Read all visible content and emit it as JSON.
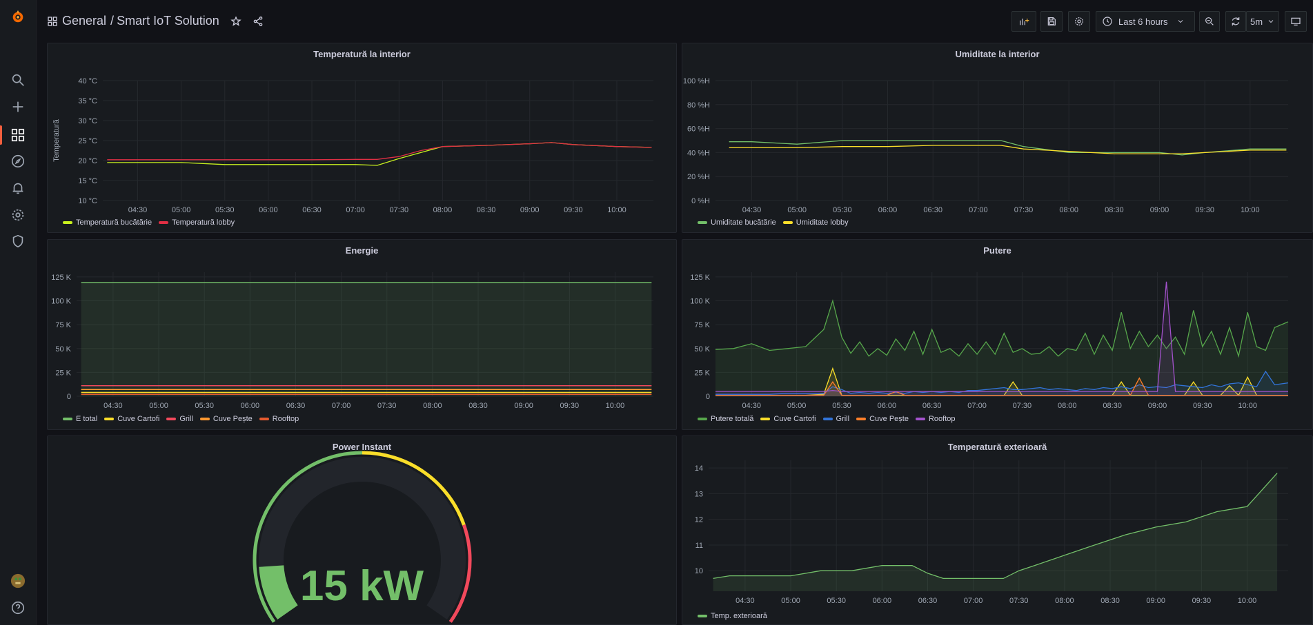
{
  "breadcrumb": {
    "folder": "General",
    "separator": "/",
    "dashboard": "Smart IoT Solution"
  },
  "toolbar": {
    "time_range": "Last 6 hours",
    "refresh_interval": "5m"
  },
  "panels": {
    "temp_interior": {
      "title": "Temperatură la interior",
      "chart_data": {
        "type": "line",
        "title": "Temperatură la interior",
        "ylabel": "Temperatură",
        "ylim": [
          10,
          40
        ],
        "yticks": [
          "40 °C",
          "35 °C",
          "30 °C",
          "25 °C",
          "20 °C",
          "15 °C",
          "10 °C"
        ],
        "xticks": [
          "04:30",
          "05:00",
          "05:30",
          "06:00",
          "06:30",
          "07:00",
          "07:30",
          "08:00",
          "08:30",
          "09:00",
          "09:30",
          "10:00"
        ],
        "x": [
          4.15,
          4.5,
          4.75,
          5.0,
          5.5,
          6.0,
          6.5,
          7.0,
          7.25,
          7.5,
          7.75,
          8.0,
          8.5,
          9.0,
          9.25,
          9.5,
          10.0,
          10.4
        ],
        "series": [
          {
            "name": "Temperatură bucătărie",
            "color": "#c8f01e",
            "values": [
              19.5,
              19.5,
              19.5,
              19.5,
              19,
              19,
              19,
              19,
              18.8,
              20.5,
              22,
              23.5,
              23.8,
              24.2,
              24.5,
              24,
              23.5,
              23.3
            ]
          },
          {
            "name": "Temperatură lobby",
            "color": "#e02f44",
            "values": [
              20.2,
              20.2,
              20.2,
              20.2,
              20.2,
              20.2,
              20.2,
              20.3,
              20.3,
              21,
              22.5,
              23.5,
              23.8,
              24.2,
              24.5,
              24,
              23.5,
              23.3
            ]
          }
        ]
      }
    },
    "humidity_interior": {
      "title": "Umiditate la interior",
      "chart_data": {
        "type": "line",
        "title": "Umiditate la interior",
        "ylim": [
          0,
          100
        ],
        "yticks": [
          "100 %H",
          "80 %H",
          "60 %H",
          "40 %H",
          "20 %H",
          "0 %H"
        ],
        "xticks": [
          "04:30",
          "05:00",
          "05:30",
          "06:00",
          "06:30",
          "07:00",
          "07:30",
          "08:00",
          "08:30",
          "09:00",
          "09:30",
          "10:00"
        ],
        "x": [
          4.25,
          4.5,
          5.0,
          5.5,
          6.0,
          6.5,
          7.0,
          7.25,
          7.5,
          8.0,
          8.5,
          9.0,
          9.25,
          9.5,
          10.0,
          10.4
        ],
        "series": [
          {
            "name": "Umiditate bucătărie",
            "color": "#73bf69",
            "values": [
              49,
              49,
              47,
              50,
              50,
              50,
              50,
              50,
              45,
              40,
              40,
              40,
              38,
              40,
              43,
              43
            ]
          },
          {
            "name": "Umiditate lobby",
            "color": "#fade2a",
            "values": [
              44,
              44,
              44,
              45,
              45,
              46,
              46,
              46,
              43,
              41,
              39,
              39,
              39,
              40,
              42,
              42
            ]
          }
        ]
      }
    },
    "energy": {
      "title": "Energie",
      "chart_data": {
        "type": "area",
        "title": "Energie",
        "ylim": [
          0,
          130000
        ],
        "yticks": [
          "125 K",
          "100 K",
          "75 K",
          "50 K",
          "25 K",
          "0"
        ],
        "xticks": [
          "04:30",
          "05:00",
          "05:30",
          "06:00",
          "06:30",
          "07:00",
          "07:30",
          "08:00",
          "08:30",
          "09:00",
          "09:30",
          "10:00"
        ],
        "series": [
          {
            "name": "E total",
            "color": "#73bf69",
            "value": 119000
          },
          {
            "name": "Cuve Cartofi",
            "color": "#fade2a",
            "value": 4000
          },
          {
            "name": "Grill",
            "color": "#f2495c",
            "value": 11000
          },
          {
            "name": "Cuve Pește",
            "color": "#ff9830",
            "value": 7000
          },
          {
            "name": "Rooftop",
            "color": "#e55a2f",
            "value": 2000
          }
        ]
      }
    },
    "power": {
      "title": "Putere",
      "chart_data": {
        "type": "line",
        "title": "Putere",
        "ylim": [
          0,
          130000
        ],
        "yticks": [
          "125 K",
          "100 K",
          "75 K",
          "50 K",
          "25 K",
          "0"
        ],
        "xticks": [
          "04:30",
          "05:00",
          "05:30",
          "06:00",
          "06:30",
          "07:00",
          "07:30",
          "08:00",
          "08:30",
          "09:00",
          "09:30",
          "10:00"
        ],
        "x": [
          4.1,
          4.3,
          4.5,
          4.7,
          4.9,
          5.1,
          5.3,
          5.4,
          5.5,
          5.6,
          5.7,
          5.8,
          5.9,
          6.0,
          6.1,
          6.2,
          6.3,
          6.4,
          6.5,
          6.6,
          6.7,
          6.8,
          6.9,
          7.0,
          7.1,
          7.2,
          7.3,
          7.4,
          7.5,
          7.6,
          7.7,
          7.8,
          7.9,
          8.0,
          8.1,
          8.2,
          8.3,
          8.4,
          8.5,
          8.6,
          8.7,
          8.8,
          8.9,
          9.0,
          9.1,
          9.2,
          9.3,
          9.4,
          9.5,
          9.6,
          9.7,
          9.8,
          9.9,
          10.0,
          10.1,
          10.2,
          10.3,
          10.45
        ],
        "series": [
          {
            "name": "Putere totală",
            "color": "#56a64b",
            "values": [
              49000,
              50000,
              55000,
              48000,
              50000,
              52000,
              70000,
              100000,
              62000,
              45000,
              57000,
              42000,
              50000,
              43000,
              60000,
              48000,
              68000,
              44000,
              70000,
              46000,
              50000,
              42000,
              55000,
              44000,
              57000,
              44000,
              66000,
              46000,
              50000,
              44000,
              45000,
              52000,
              42000,
              50000,
              48000,
              66000,
              44000,
              64000,
              48000,
              88000,
              50000,
              68000,
              52000,
              64000,
              50000,
              62000,
              44000,
              90000,
              52000,
              68000,
              44000,
              72000,
              42000,
              88000,
              52000,
              48000,
              72000,
              78000
            ]
          },
          {
            "name": "Cuve Cartofi",
            "color": "#fade2a",
            "values": [
              1000,
              1000,
              1000,
              1000,
              1000,
              1000,
              2000,
              29000,
              1000,
              1000,
              1000,
              1000,
              1000,
              1000,
              1000,
              1000,
              1000,
              1000,
              1000,
              1000,
              1000,
              1000,
              1000,
              1000,
              1000,
              1000,
              1000,
              15000,
              1000,
              1000,
              1000,
              1000,
              1000,
              1000,
              1000,
              1000,
              1000,
              1000,
              1000,
              15000,
              1000,
              1000,
              1000,
              1000,
              1000,
              1000,
              1000,
              15000,
              1000,
              1000,
              1000,
              11000,
              1000,
              20000,
              1000,
              1000,
              1000,
              1000
            ]
          },
          {
            "name": "Grill",
            "color": "#3274d9",
            "values": [
              2000,
              2000,
              2000,
              2000,
              3000,
              3000,
              3000,
              10000,
              7000,
              3000,
              4000,
              3000,
              4000,
              3000,
              4000,
              3000,
              5000,
              4000,
              5000,
              4000,
              5000,
              4000,
              6000,
              6000,
              7000,
              8000,
              9000,
              7000,
              7000,
              8000,
              9000,
              7000,
              8000,
              7000,
              6000,
              8000,
              7000,
              9000,
              8000,
              10000,
              8000,
              12000,
              9000,
              10000,
              9000,
              12000,
              11000,
              10000,
              9000,
              12000,
              10000,
              13000,
              14000,
              12000,
              10000,
              26000,
              12000,
              14000
            ]
          },
          {
            "name": "Cuve Pește",
            "color": "#ff7f2a",
            "values": [
              1000,
              1000,
              1000,
              1000,
              1000,
              1000,
              1000,
              15000,
              1000,
              1000,
              1000,
              1000,
              1000,
              1000,
              5000,
              1000,
              1000,
              1000,
              1000,
              1000,
              1000,
              1000,
              1000,
              1000,
              1000,
              1000,
              1000,
              1000,
              1000,
              1000,
              1000,
              1000,
              1000,
              1000,
              1000,
              1000,
              1000,
              1000,
              1000,
              1000,
              1000,
              19000,
              1000,
              1000,
              1000,
              1000,
              1000,
              1000,
              1000,
              1000,
              1000,
              1000,
              1000,
              1000,
              1000,
              1000,
              1000,
              1000
            ]
          },
          {
            "name": "Rooftop",
            "color": "#a352cc",
            "values": [
              5000,
              5000,
              5000,
              5000,
              5000,
              5000,
              5000,
              6000,
              5000,
              5000,
              5000,
              5000,
              5000,
              5000,
              5000,
              5000,
              5000,
              5000,
              5000,
              5000,
              5000,
              5000,
              5000,
              5000,
              5000,
              5000,
              5000,
              5000,
              5000,
              5000,
              5000,
              5000,
              5000,
              5000,
              5000,
              5000,
              5000,
              5000,
              5000,
              5000,
              5000,
              5000,
              5000,
              5000,
              120000,
              5000,
              5000,
              5000,
              5000,
              5000,
              5000,
              5000,
              5000,
              5000,
              5000,
              5000,
              5000,
              5000
            ]
          }
        ]
      }
    },
    "power_instant": {
      "title": "Power Instant",
      "value": 15,
      "unit": "kW",
      "display": "15 kW",
      "max": 120,
      "thresholds": [
        {
          "from": 0,
          "to": 60,
          "color": "#73bf69"
        },
        {
          "from": 60,
          "to": 94,
          "color": "#fade2a"
        },
        {
          "from": 94,
          "to": 120,
          "color": "#f2495c"
        }
      ]
    },
    "temp_exterior": {
      "title": "Temperatură exterioară",
      "chart_data": {
        "type": "area",
        "title": "Temperatură exterioară",
        "ylim": [
          9.2,
          14.3
        ],
        "yticks": [
          "14",
          "13",
          "12",
          "11",
          "10"
        ],
        "xticks": [
          "04:30",
          "05:00",
          "05:30",
          "06:00",
          "06:30",
          "07:00",
          "07:30",
          "08:00",
          "08:30",
          "09:00",
          "09:30",
          "10:00"
        ],
        "x": [
          4.15,
          4.33,
          4.67,
          5.0,
          5.33,
          5.67,
          6.0,
          6.33,
          6.5,
          6.67,
          7.0,
          7.33,
          7.5,
          7.67,
          8.0,
          8.33,
          8.67,
          9.0,
          9.33,
          9.67,
          10.0,
          10.33
        ],
        "series": [
          {
            "name": "Temp. exterioară",
            "color": "#73bf69",
            "values": [
              9.7,
              9.8,
              9.8,
              9.8,
              10.0,
              10.0,
              10.2,
              10.2,
              9.9,
              9.7,
              9.7,
              9.7,
              10.0,
              10.2,
              10.6,
              11.0,
              11.4,
              11.7,
              11.9,
              12.3,
              12.5,
              13.8
            ]
          }
        ]
      }
    }
  }
}
